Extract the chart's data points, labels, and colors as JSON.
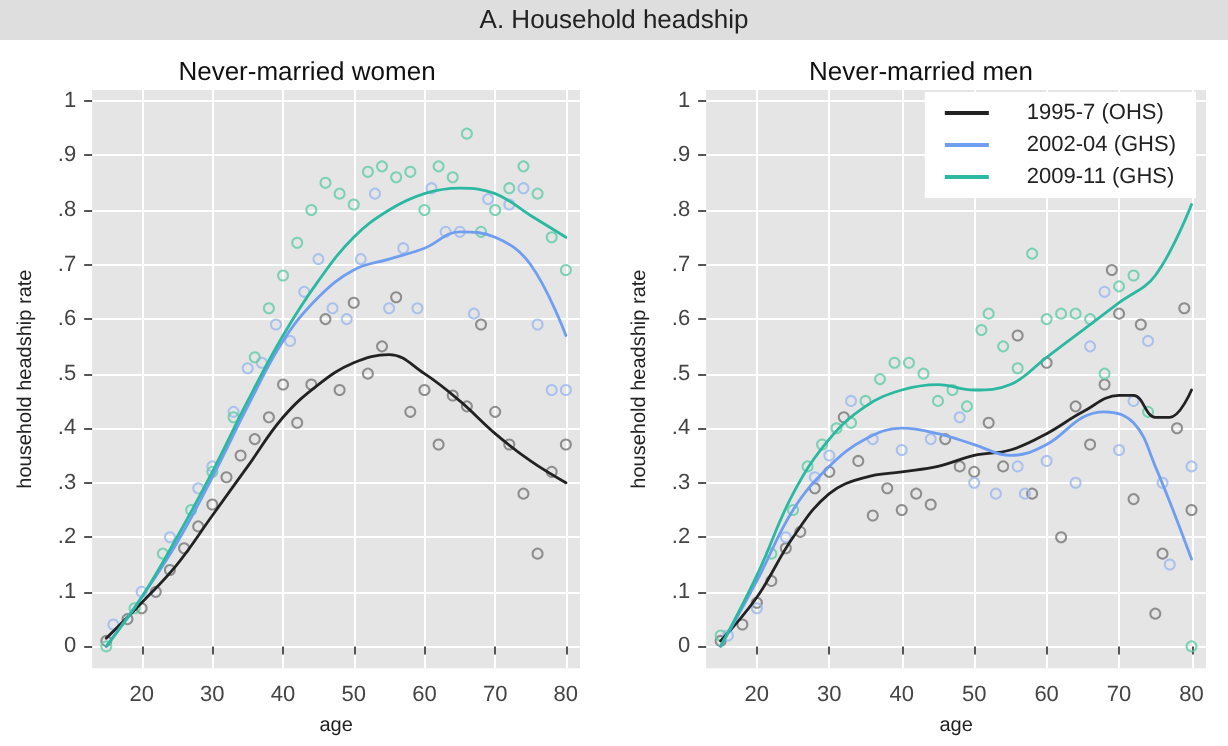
{
  "chart_data": [
    {
      "type": "line",
      "title": "Never-married women",
      "annotations": [
        "A. Household headship"
      ],
      "xlabel": "age",
      "ylabel": "household headship rate",
      "xlim": [
        13,
        82
      ],
      "xticks": [
        20,
        30,
        40,
        50,
        60,
        70,
        80
      ],
      "ylim": [
        -0.04,
        1.02
      ],
      "yticks": [
        {
          "value": 0,
          "label": "0"
        },
        {
          "value": 0.1,
          "label": ".1"
        },
        {
          "value": 0.2,
          "label": ".2"
        },
        {
          "value": 0.3,
          "label": ".3"
        },
        {
          "value": 0.4,
          "label": ".4"
        },
        {
          "value": 0.5,
          "label": ".5"
        },
        {
          "value": 0.6,
          "label": ".6"
        },
        {
          "value": 0.7,
          "label": ".7"
        },
        {
          "value": 0.8,
          "label": ".8"
        },
        {
          "value": 0.9,
          "label": ".9"
        },
        {
          "value": 1,
          "label": "1"
        }
      ],
      "grid": true,
      "legend": false,
      "series": [
        {
          "type": "scatter",
          "marker": "circle",
          "color": "#777777",
          "x": [
            15,
            18,
            20,
            22,
            24,
            26,
            28,
            30,
            32,
            34,
            36,
            38,
            40,
            42,
            44,
            46,
            48,
            50,
            52,
            54,
            56,
            58,
            60,
            62,
            64,
            66,
            68,
            70,
            72,
            74,
            76,
            78,
            80
          ],
          "values": [
            0.01,
            0.05,
            0.07,
            0.1,
            0.14,
            0.18,
            0.22,
            0.26,
            0.31,
            0.35,
            0.38,
            0.42,
            0.48,
            0.41,
            0.48,
            0.6,
            0.47,
            0.63,
            0.5,
            0.55,
            0.64,
            0.43,
            0.47,
            0.37,
            0.46,
            0.44,
            0.59,
            0.43,
            0.37,
            0.28,
            0.17,
            0.32,
            0.37
          ]
        },
        {
          "type": "scatter",
          "marker": "circle",
          "color": "#9ab8ee",
          "x": [
            16,
            20,
            24,
            28,
            30,
            33,
            35,
            37,
            39,
            41,
            43,
            45,
            47,
            49,
            51,
            53,
            55,
            57,
            59,
            61,
            63,
            65,
            67,
            69,
            72,
            74,
            76,
            78,
            80
          ],
          "values": [
            0.04,
            0.1,
            0.2,
            0.29,
            0.33,
            0.43,
            0.51,
            0.52,
            0.59,
            0.56,
            0.65,
            0.71,
            0.62,
            0.6,
            0.71,
            0.83,
            0.62,
            0.73,
            0.62,
            0.84,
            0.76,
            0.76,
            0.61,
            0.82,
            0.81,
            0.84,
            0.59,
            0.47,
            0.47
          ]
        },
        {
          "type": "scatter",
          "marker": "circle",
          "color": "#5fcca8",
          "x": [
            15,
            19,
            23,
            27,
            30,
            33,
            36,
            38,
            40,
            42,
            44,
            46,
            48,
            50,
            52,
            54,
            56,
            58,
            60,
            62,
            64,
            66,
            68,
            70,
            72,
            74,
            76,
            78,
            80
          ],
          "values": [
            0,
            0.07,
            0.17,
            0.25,
            0.32,
            0.42,
            0.53,
            0.62,
            0.68,
            0.74,
            0.8,
            0.85,
            0.83,
            0.81,
            0.87,
            0.88,
            0.86,
            0.87,
            0.8,
            0.88,
            0.86,
            0.94,
            0.76,
            0.8,
            0.84,
            0.88,
            0.83,
            0.75,
            0.69
          ]
        },
        {
          "type": "line",
          "marker": "none",
          "color": "#222222",
          "x": [
            15,
            20,
            25,
            30,
            35,
            40,
            45,
            50,
            55,
            60,
            65,
            70,
            75,
            80
          ],
          "values": [
            0.015,
            0.08,
            0.15,
            0.24,
            0.33,
            0.42,
            0.48,
            0.52,
            0.535,
            0.5,
            0.45,
            0.39,
            0.34,
            0.3
          ]
        },
        {
          "type": "line",
          "marker": "none",
          "color": "#6f9ef0",
          "x": [
            15,
            20,
            25,
            30,
            35,
            40,
            45,
            50,
            55,
            60,
            65,
            70,
            75,
            80
          ],
          "values": [
            0,
            0.09,
            0.19,
            0.31,
            0.44,
            0.56,
            0.64,
            0.69,
            0.71,
            0.73,
            0.76,
            0.75,
            0.7,
            0.57
          ]
        },
        {
          "type": "line",
          "marker": "none",
          "color": "#2bb8a0",
          "x": [
            15,
            20,
            25,
            30,
            35,
            40,
            45,
            50,
            55,
            60,
            65,
            70,
            75,
            80
          ],
          "values": [
            0,
            0.09,
            0.2,
            0.32,
            0.45,
            0.57,
            0.67,
            0.75,
            0.8,
            0.83,
            0.84,
            0.83,
            0.79,
            0.75
          ]
        }
      ]
    },
    {
      "type": "line",
      "title": "Never-married men",
      "xlabel": "age",
      "ylabel": "household headship rate",
      "xlim": [
        13,
        82
      ],
      "xticks": [
        20,
        30,
        40,
        50,
        60,
        70,
        80
      ],
      "ylim": [
        -0.04,
        1.02
      ],
      "yticks": [
        {
          "value": 0,
          "label": "0"
        },
        {
          "value": 0.1,
          "label": ".1"
        },
        {
          "value": 0.2,
          "label": ".2"
        },
        {
          "value": 0.3,
          "label": ".3"
        },
        {
          "value": 0.4,
          "label": ".4"
        },
        {
          "value": 0.5,
          "label": ".5"
        },
        {
          "value": 0.6,
          "label": ".6"
        },
        {
          "value": 0.7,
          "label": ".7"
        },
        {
          "value": 0.8,
          "label": ".8"
        },
        {
          "value": 0.9,
          "label": ".9"
        },
        {
          "value": 1,
          "label": "1"
        }
      ],
      "grid": true,
      "legend": "top right",
      "series": [
        {
          "type": "scatter",
          "marker": "circle",
          "color": "#777777",
          "x": [
            15,
            18,
            20,
            22,
            24,
            26,
            28,
            30,
            32,
            34,
            36,
            38,
            40,
            42,
            44,
            46,
            48,
            50,
            52,
            54,
            56,
            58,
            60,
            62,
            64,
            66,
            68,
            69,
            70,
            72,
            73,
            75,
            76,
            78,
            79,
            80
          ],
          "values": [
            0.01,
            0.04,
            0.08,
            0.12,
            0.18,
            0.21,
            0.29,
            0.32,
            0.42,
            0.34,
            0.24,
            0.29,
            0.25,
            0.28,
            0.26,
            0.38,
            0.33,
            0.32,
            0.41,
            0.33,
            0.57,
            0.28,
            0.52,
            0.2,
            0.44,
            0.37,
            0.48,
            0.69,
            0.61,
            0.27,
            0.59,
            0.06,
            0.17,
            0.4,
            0.62,
            0.25
          ]
        },
        {
          "type": "scatter",
          "marker": "circle",
          "color": "#9ab8ee",
          "x": [
            16,
            20,
            24,
            28,
            30,
            33,
            36,
            40,
            44,
            48,
            50,
            53,
            56,
            57,
            60,
            64,
            66,
            68,
            70,
            72,
            74,
            76,
            77,
            80
          ],
          "values": [
            0.02,
            0.07,
            0.2,
            0.31,
            0.35,
            0.45,
            0.38,
            0.36,
            0.38,
            0.42,
            0.3,
            0.28,
            0.33,
            0.28,
            0.34,
            0.3,
            0.55,
            0.65,
            0.36,
            0.45,
            0.56,
            0.3,
            0.15,
            0.33
          ]
        },
        {
          "type": "scatter",
          "marker": "circle",
          "color": "#5fcca8",
          "x": [
            15,
            22,
            25,
            27,
            29,
            31,
            33,
            35,
            37,
            39,
            41,
            43,
            45,
            47,
            49,
            51,
            52,
            54,
            56,
            58,
            60,
            62,
            64,
            66,
            68,
            70,
            72,
            74,
            80
          ],
          "values": [
            0.02,
            0.17,
            0.25,
            0.33,
            0.37,
            0.4,
            0.41,
            0.45,
            0.49,
            0.52,
            0.52,
            0.5,
            0.45,
            0.47,
            0.44,
            0.58,
            0.61,
            0.55,
            0.51,
            0.72,
            0.6,
            0.61,
            0.61,
            0.6,
            0.5,
            0.66,
            0.68,
            0.43,
            0
          ]
        },
        {
          "type": "line",
          "name": "1995-7 (OHS)",
          "marker": "none",
          "color": "#222222",
          "x": [
            15,
            20,
            25,
            30,
            35,
            40,
            45,
            50,
            55,
            60,
            65,
            70,
            72,
            75,
            77,
            80
          ],
          "values": [
            0.01,
            0.09,
            0.2,
            0.28,
            0.31,
            0.32,
            0.33,
            0.35,
            0.36,
            0.39,
            0.43,
            0.46,
            0.46,
            0.42,
            0.42,
            0.47
          ]
        },
        {
          "type": "line",
          "name": "2002-04 (GHS)",
          "marker": "none",
          "color": "#6f9ef0",
          "x": [
            15,
            20,
            25,
            30,
            35,
            40,
            45,
            50,
            55,
            60,
            65,
            68,
            72,
            75,
            80
          ],
          "values": [
            0,
            0.12,
            0.25,
            0.33,
            0.38,
            0.4,
            0.39,
            0.37,
            0.35,
            0.37,
            0.42,
            0.43,
            0.41,
            0.33,
            0.16
          ]
        },
        {
          "type": "line",
          "name": "2009-11 (GHS)",
          "marker": "none",
          "color": "#2bb8a0",
          "x": [
            15,
            20,
            25,
            30,
            35,
            40,
            45,
            50,
            55,
            60,
            65,
            70,
            75,
            80
          ],
          "values": [
            0,
            0.13,
            0.28,
            0.38,
            0.44,
            0.47,
            0.48,
            0.47,
            0.48,
            0.53,
            0.58,
            0.63,
            0.68,
            0.81
          ]
        }
      ]
    }
  ]
}
